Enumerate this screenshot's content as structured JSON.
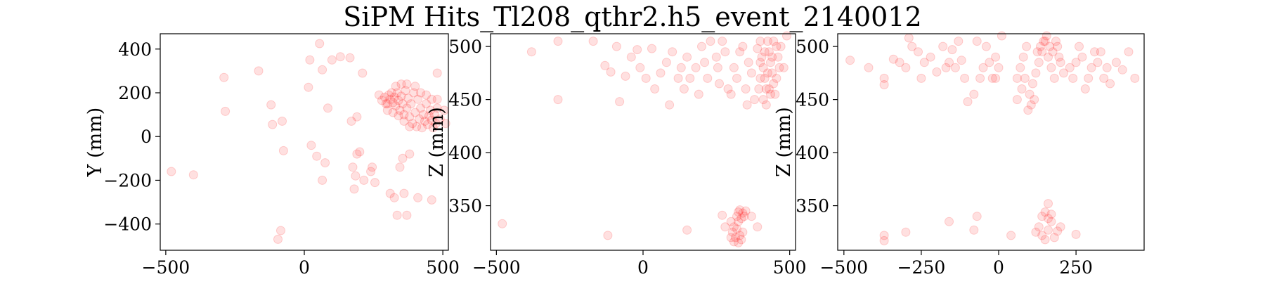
{
  "figure": {
    "title": "SiPM Hits_Tl208_qthr2.h5_event_2140012"
  },
  "colors": {
    "marker": "#ff0000",
    "axis": "#000000",
    "background": "#ffffff"
  },
  "chart_data": [
    {
      "type": "scatter",
      "xlabel": "",
      "ylabel": "Y (mm)",
      "xlim": [
        -520,
        520
      ],
      "ylim": [
        -520,
        470
      ],
      "xticks": [
        -500,
        0,
        500
      ],
      "xtick_labels": [
        "−500",
        "0",
        "500"
      ],
      "yticks": [
        -400,
        -200,
        0,
        200,
        400
      ],
      "ytick_labels": [
        "−400",
        "−200",
        "0",
        "200",
        "400"
      ],
      "grid": false,
      "marker_color": "#ff0000",
      "marker_alpha": 0.12,
      "points": [
        [
          -480,
          -160
        ],
        [
          -400,
          -175
        ],
        [
          -290,
          270
        ],
        [
          -285,
          115
        ],
        [
          -165,
          300
        ],
        [
          -120,
          145
        ],
        [
          -115,
          55
        ],
        [
          -95,
          -470
        ],
        [
          -85,
          -430
        ],
        [
          -80,
          70
        ],
        [
          -75,
          -65
        ],
        [
          15,
          225
        ],
        [
          20,
          350
        ],
        [
          25,
          -40
        ],
        [
          45,
          -90
        ],
        [
          55,
          425
        ],
        [
          65,
          305
        ],
        [
          65,
          -200
        ],
        [
          75,
          -120
        ],
        [
          85,
          130
        ],
        [
          100,
          350
        ],
        [
          130,
          365
        ],
        [
          165,
          360
        ],
        [
          170,
          70
        ],
        [
          175,
          -140
        ],
        [
          180,
          -240
        ],
        [
          185,
          -180
        ],
        [
          190,
          -80
        ],
        [
          190,
          90
        ],
        [
          200,
          -70
        ],
        [
          210,
          290
        ],
        [
          215,
          -200
        ],
        [
          240,
          -160
        ],
        [
          245,
          -140
        ],
        [
          255,
          -210
        ],
        [
          300,
          150
        ],
        [
          310,
          -260
        ],
        [
          325,
          -280
        ],
        [
          335,
          -360
        ],
        [
          345,
          -140
        ],
        [
          355,
          -100
        ],
        [
          360,
          -260
        ],
        [
          370,
          -360
        ],
        [
          380,
          -80
        ],
        [
          410,
          -280
        ],
        [
          460,
          -290
        ],
        [
          480,
          290
        ],
        [
          505,
          120
        ],
        [
          510,
          60
        ],
        [
          270,
          190
        ],
        [
          280,
          165
        ],
        [
          290,
          180
        ],
        [
          295,
          150
        ],
        [
          305,
          190
        ],
        [
          310,
          170
        ],
        [
          315,
          200
        ],
        [
          320,
          155
        ],
        [
          325,
          180
        ],
        [
          330,
          140
        ],
        [
          335,
          200
        ],
        [
          340,
          165
        ],
        [
          345,
          120
        ],
        [
          350,
          185
        ],
        [
          355,
          150
        ],
        [
          360,
          100
        ],
        [
          365,
          210
        ],
        [
          370,
          130
        ],
        [
          375,
          175
        ],
        [
          380,
          90
        ],
        [
          385,
          150
        ],
        [
          390,
          60
        ],
        [
          395,
          200
        ],
        [
          400,
          110
        ],
        [
          405,
          45
        ],
        [
          410,
          170
        ],
        [
          415,
          80
        ],
        [
          420,
          130
        ],
        [
          425,
          40
        ],
        [
          430,
          100
        ],
        [
          435,
          70
        ],
        [
          440,
          150
        ],
        [
          445,
          55
        ],
        [
          450,
          95
        ],
        [
          455,
          120
        ],
        [
          460,
          75
        ],
        [
          465,
          40
        ],
        [
          470,
          100
        ],
        [
          475,
          60
        ],
        [
          480,
          130
        ],
        [
          490,
          80
        ],
        [
          300,
          120
        ],
        [
          320,
          110
        ],
        [
          340,
          95
        ],
        [
          360,
          70
        ],
        [
          380,
          45
        ],
        [
          330,
          230
        ],
        [
          350,
          240
        ],
        [
          370,
          240
        ],
        [
          400,
          230
        ],
        [
          420,
          200
        ],
        [
          440,
          190
        ],
        [
          460,
          170
        ],
        [
          480,
          170
        ]
      ]
    },
    {
      "type": "scatter",
      "xlabel": "",
      "ylabel": "Z (mm)",
      "xlim": [
        -520,
        520
      ],
      "ylim": [
        308,
        512
      ],
      "xticks": [
        -500,
        0,
        500
      ],
      "xtick_labels": [
        "−500",
        "0",
        "500"
      ],
      "yticks": [
        350,
        400,
        450,
        500
      ],
      "ytick_labels": [
        "350",
        "400",
        "450",
        "500"
      ],
      "grid": false,
      "marker_color": "#ff0000",
      "marker_alpha": 0.12,
      "points": [
        [
          -480,
          333
        ],
        [
          -380,
          495
        ],
        [
          -290,
          505
        ],
        [
          -290,
          450
        ],
        [
          -170,
          505
        ],
        [
          -130,
          482
        ],
        [
          -120,
          322
        ],
        [
          -110,
          476
        ],
        [
          -90,
          500
        ],
        [
          -80,
          448
        ],
        [
          -60,
          472
        ],
        [
          -40,
          490
        ],
        [
          -20,
          497
        ],
        [
          -10,
          480
        ],
        [
          10,
          470
        ],
        [
          30,
          498
        ],
        [
          40,
          460
        ],
        [
          60,
          475
        ],
        [
          80,
          485
        ],
        [
          90,
          445
        ],
        [
          100,
          495
        ],
        [
          120,
          470
        ],
        [
          130,
          480
        ],
        [
          140,
          460
        ],
        [
          150,
          490
        ],
        [
          160,
          470
        ],
        [
          180,
          480
        ],
        [
          190,
          455
        ],
        [
          200,
          500
        ],
        [
          210,
          485
        ],
        [
          220,
          470
        ],
        [
          230,
          505
        ],
        [
          250,
          490
        ],
        [
          255,
          480
        ],
        [
          260,
          465
        ],
        [
          270,
          505
        ],
        [
          280,
          495
        ],
        [
          290,
          460
        ],
        [
          300,
          455
        ],
        [
          310,
          480
        ],
        [
          320,
          470
        ],
        [
          330,
          495
        ],
        [
          340,
          500
        ],
        [
          350,
          460
        ],
        [
          355,
          445
        ],
        [
          360,
          485
        ],
        [
          370,
          475
        ],
        [
          380,
          450
        ],
        [
          470,
          500
        ],
        [
          480,
          480
        ],
        [
          490,
          510
        ],
        [
          150,
          327
        ],
        [
          270,
          341
        ],
        [
          280,
          330
        ],
        [
          370,
          340
        ],
        [
          390,
          330
        ],
        [
          390,
          498
        ],
        [
          400,
          505
        ],
        [
          405,
          490
        ],
        [
          410,
          480
        ],
        [
          415,
          470
        ],
        [
          420,
          460
        ],
        [
          425,
          505
        ],
        [
          430,
          495
        ],
        [
          435,
          485
        ],
        [
          440,
          475
        ],
        [
          445,
          465
        ],
        [
          450,
          455
        ],
        [
          455,
          500
        ],
        [
          460,
          490
        ],
        [
          410,
          450
        ],
        [
          420,
          445
        ],
        [
          430,
          460
        ],
        [
          440,
          490
        ],
        [
          400,
          470
        ],
        [
          395,
          460
        ],
        [
          400,
          485
        ],
        [
          425,
          475
        ],
        [
          415,
          495
        ],
        [
          445,
          505
        ],
        [
          435,
          455
        ],
        [
          455,
          470
        ],
        [
          465,
          480
        ],
        [
          300,
          320
        ],
        [
          305,
          325
        ],
        [
          310,
          330
        ],
        [
          315,
          320
        ],
        [
          320,
          328
        ],
        [
          325,
          335
        ],
        [
          330,
          322
        ],
        [
          335,
          318
        ],
        [
          340,
          325
        ],
        [
          300,
          335
        ],
        [
          310,
          316
        ],
        [
          325,
          315
        ],
        [
          320,
          340
        ],
        [
          325,
          344
        ],
        [
          330,
          346
        ],
        [
          335,
          338
        ],
        [
          340,
          343
        ],
        [
          345,
          340
        ],
        [
          350,
          345
        ]
      ]
    },
    {
      "type": "scatter",
      "xlabel": "",
      "ylabel": "Z (mm)",
      "xlim": [
        -520,
        470
      ],
      "ylim": [
        308,
        512
      ],
      "xticks": [
        -500,
        -250,
        0,
        250
      ],
      "xtick_labels": [
        "−500",
        "−250",
        "0",
        "250"
      ],
      "yticks": [
        350,
        400,
        450,
        500
      ],
      "ytick_labels": [
        "350",
        "400",
        "450",
        "500"
      ],
      "grid": false,
      "marker_color": "#ff0000",
      "marker_alpha": 0.12,
      "points": [
        [
          -480,
          487
        ],
        [
          -420,
          480
        ],
        [
          -370,
          470
        ],
        [
          -370,
          464
        ],
        [
          -370,
          322
        ],
        [
          -370,
          317
        ],
        [
          -340,
          488
        ],
        [
          -320,
          485
        ],
        [
          -300,
          480
        ],
        [
          -290,
          508
        ],
        [
          -280,
          500
        ],
        [
          -260,
          495
        ],
        [
          -250,
          470
        ],
        [
          -240,
          485
        ],
        [
          -220,
          490
        ],
        [
          -200,
          476
        ],
        [
          -180,
          500
        ],
        [
          -170,
          480
        ],
        [
          -160,
          485
        ],
        [
          -150,
          497
        ],
        [
          -140,
          480
        ],
        [
          -130,
          505
        ],
        [
          -120,
          487
        ],
        [
          -110,
          470
        ],
        [
          -100,
          448
        ],
        [
          -80,
          455
        ],
        [
          -80,
          327
        ],
        [
          -70,
          505
        ],
        [
          -60,
          470
        ],
        [
          -50,
          480
        ],
        [
          -40,
          500
        ],
        [
          -30,
          485
        ],
        [
          -20,
          470
        ],
        [
          -10,
          490
        ],
        [
          -10,
          470
        ],
        [
          0,
          480
        ],
        [
          10,
          510
        ],
        [
          -300,
          325
        ],
        [
          -160,
          335
        ],
        [
          -70,
          340
        ],
        [
          40,
          322
        ],
        [
          230,
          480
        ],
        [
          240,
          470
        ],
        [
          250,
          485
        ],
        [
          260,
          500
        ],
        [
          270,
          490
        ],
        [
          280,
          460
        ],
        [
          290,
          470
        ],
        [
          300,
          480
        ],
        [
          310,
          495
        ],
        [
          320,
          485
        ],
        [
          330,
          495
        ],
        [
          340,
          470
        ],
        [
          350,
          480
        ],
        [
          360,
          465
        ],
        [
          380,
          485
        ],
        [
          400,
          478
        ],
        [
          420,
          495
        ],
        [
          440,
          470
        ],
        [
          250,
          323
        ],
        [
          60,
          470
        ],
        [
          70,
          480
        ],
        [
          80,
          490
        ],
        [
          90,
          500
        ],
        [
          100,
          455
        ],
        [
          110,
          465
        ],
        [
          120,
          475
        ],
        [
          130,
          485
        ],
        [
          140,
          495
        ],
        [
          150,
          505
        ],
        [
          160,
          490
        ],
        [
          170,
          480
        ],
        [
          180,
          470
        ],
        [
          190,
          500
        ],
        [
          200,
          485
        ],
        [
          210,
          475
        ],
        [
          60,
          450
        ],
        [
          75,
          460
        ],
        [
          85,
          470
        ],
        [
          95,
          440
        ],
        [
          105,
          445
        ],
        [
          115,
          450
        ],
        [
          125,
          495
        ],
        [
          135,
          500
        ],
        [
          145,
          505
        ],
        [
          155,
          510
        ],
        [
          165,
          500
        ],
        [
          175,
          495
        ],
        [
          185,
          505
        ],
        [
          195,
          490
        ],
        [
          120,
          325
        ],
        [
          130,
          330
        ],
        [
          140,
          322
        ],
        [
          150,
          318
        ],
        [
          160,
          327
        ],
        [
          170,
          335
        ],
        [
          180,
          320
        ],
        [
          190,
          326
        ],
        [
          200,
          330
        ],
        [
          140,
          340
        ],
        [
          150,
          344
        ],
        [
          160,
          338
        ],
        [
          170,
          342
        ],
        [
          160,
          352
        ]
      ]
    }
  ]
}
